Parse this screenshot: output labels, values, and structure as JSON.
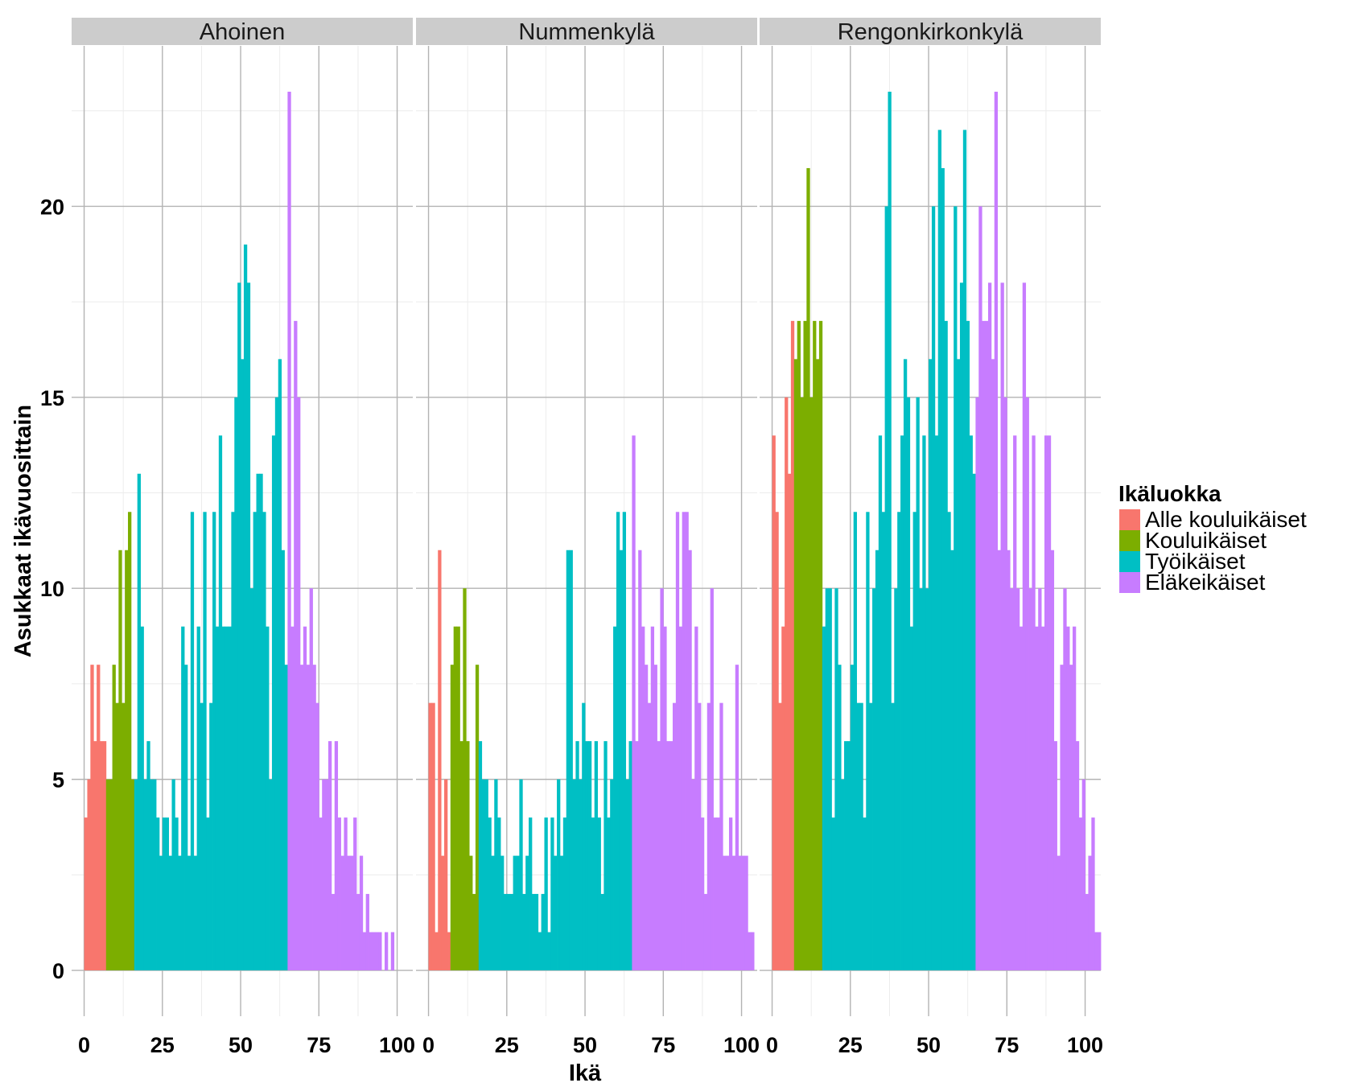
{
  "chart_data": {
    "type": "bar",
    "chart_kind": "faceted-histogram",
    "binwidth": 1,
    "xlabel": "Ikä",
    "ylabel": "Asukkaat ikävuosittain",
    "x_ticks": [
      0,
      25,
      50,
      75,
      100
    ],
    "y_ticks": [
      0,
      5,
      10,
      15,
      20
    ],
    "xlim": [
      -4,
      105
    ],
    "ylim": [
      -1.2,
      24.2
    ],
    "legend": {
      "title": "Ikäluokka",
      "position": "right",
      "entries": [
        {
          "name": "Alle kouluikäiset",
          "color": "#F8766D"
        },
        {
          "name": "Kouluikäiset",
          "color": "#7CAE00"
        },
        {
          "name": "Työikäiset",
          "color": "#00BFC4"
        },
        {
          "name": "Eläkeikäiset",
          "color": "#C77CFF"
        }
      ]
    },
    "class_boundaries": [
      0,
      7,
      16,
      65,
      101
    ],
    "panel_background": "#ffffff",
    "grid_color": "#b3b3b3",
    "grid": true,
    "facets": [
      {
        "label": "Ahoinen",
        "counts": [
          4,
          5,
          8,
          6,
          8,
          6,
          6,
          5,
          5,
          8,
          7,
          11,
          7,
          11,
          12,
          5,
          5,
          13,
          9,
          5,
          6,
          5,
          5,
          4,
          3,
          4,
          4,
          3,
          5,
          4,
          3,
          9,
          8,
          3,
          12,
          3,
          9,
          7,
          12,
          4,
          7,
          12,
          9,
          14,
          9,
          9,
          9,
          12,
          15,
          18,
          16,
          19,
          18,
          10,
          12,
          13,
          13,
          12,
          9,
          5,
          14,
          15,
          16,
          11,
          8,
          23,
          9,
          17,
          15,
          8,
          9,
          8,
          10,
          8,
          7,
          4,
          5,
          5,
          6,
          2,
          6,
          4,
          3,
          4,
          3,
          3,
          4,
          2,
          3,
          1,
          2,
          1,
          1,
          1,
          1,
          0,
          1,
          0,
          1,
          0,
          0
        ]
      },
      {
        "label": "Nummenkylä",
        "counts": [
          7,
          7,
          1,
          11,
          3,
          5,
          1,
          8,
          9,
          9,
          6,
          10,
          6,
          3,
          2,
          8,
          6,
          5,
          5,
          4,
          3,
          5,
          4,
          3,
          2,
          2,
          2,
          3,
          3,
          5,
          2,
          3,
          4,
          2,
          2,
          1,
          2,
          4,
          1,
          4,
          3,
          5,
          3,
          4,
          11,
          11,
          5,
          6,
          5,
          7,
          6,
          6,
          4,
          6,
          4,
          2,
          6,
          4,
          5,
          9,
          12,
          11,
          12,
          5,
          6,
          14,
          6,
          11,
          9,
          8,
          7,
          9,
          8,
          6,
          10,
          9,
          6,
          6,
          7,
          12,
          9,
          12,
          12,
          11,
          5,
          9,
          7,
          4,
          2,
          7,
          10,
          4,
          4,
          7,
          3,
          3,
          4,
          3,
          8,
          3,
          3,
          3,
          1,
          1,
          0
        ]
      },
      {
        "label": "Rengonkirkonkylä",
        "counts": [
          14,
          12,
          7,
          9,
          15,
          13,
          17,
          16,
          17,
          15,
          17,
          21,
          15,
          17,
          16,
          17,
          9,
          10,
          10,
          4,
          10,
          8,
          5,
          6,
          6,
          8,
          12,
          7,
          7,
          4,
          12,
          7,
          10,
          11,
          14,
          12,
          20,
          23,
          7,
          10,
          12,
          14,
          16,
          15,
          9,
          12,
          15,
          10,
          14,
          10,
          16,
          20,
          14,
          22,
          21,
          17,
          12,
          11,
          20,
          16,
          18,
          22,
          17,
          14,
          13,
          15,
          20,
          17,
          17,
          18,
          16,
          23,
          11,
          18,
          15,
          11,
          10,
          14,
          10,
          9,
          18,
          15,
          10,
          14,
          9,
          10,
          9,
          14,
          14,
          11,
          6,
          3,
          8,
          10,
          9,
          8,
          9,
          6,
          4,
          5,
          2,
          3,
          4,
          1,
          1,
          0
        ]
      }
    ]
  }
}
